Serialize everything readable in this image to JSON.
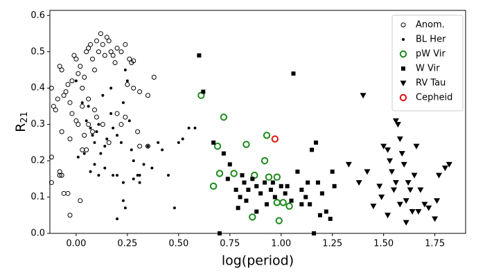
{
  "chart_data": {
    "type": "scatter",
    "x_label": "log(period)",
    "y_label": {
      "base": "R",
      "subscript": "21"
    },
    "xlim": [
      -0.128,
      1.9
    ],
    "ylim": [
      0,
      0.614
    ],
    "xticks": [
      {
        "value": 0,
        "label": "0.00"
      },
      {
        "value": 0.25,
        "label": "0.25"
      },
      {
        "value": 0.5,
        "label": "0.50"
      },
      {
        "value": 0.75,
        "label": "0.75"
      },
      {
        "value": 1,
        "label": "1.00"
      },
      {
        "value": 1.25,
        "label": "1.25"
      },
      {
        "value": 1.5,
        "label": "1.50"
      },
      {
        "value": 1.75,
        "label": "1.75"
      }
    ],
    "yticks": [
      {
        "value": 0,
        "label": "0.0"
      },
      0.1,
      0.2,
      0.3,
      0.4,
      0.5,
      0.6
    ],
    "legend": "upper right",
    "series": [
      {
        "name": "Anom.",
        "color": "#000000",
        "marker": "open-circle",
        "x": [
          -0.12,
          -0.11,
          -0.1,
          -0.09,
          -0.08,
          -0.07,
          -0.06,
          -0.05,
          -0.04,
          -0.03,
          -0.02,
          -0.01,
          0.0,
          0.01,
          0.02,
          0.03,
          0.04,
          0.05,
          0.06,
          0.07,
          0.08,
          0.09,
          0.1,
          0.11,
          0.12,
          0.13,
          0.14,
          0.15,
          0.16,
          0.17,
          0.18,
          0.19,
          0.2,
          0.22,
          0.24,
          0.26,
          0.27,
          0.28,
          0.25,
          0.28,
          0.31,
          0.38,
          0.35,
          -0.12,
          -0.12,
          -0.08,
          -0.08,
          -0.07,
          -0.06,
          -0.04,
          -0.03,
          0.02,
          -0.07,
          -0.03,
          0.0,
          0.03,
          0.05,
          0.04,
          0.08,
          0.1,
          0.13,
          0.16,
          0.2,
          0.22,
          0.24,
          0.3,
          0.31,
          0.35,
          0.03,
          0.06,
          0.09,
          0.06,
          0.01,
          -0.02
        ],
        "values": [
          0.4,
          0.35,
          0.34,
          0.37,
          0.46,
          0.45,
          0.38,
          0.39,
          0.41,
          0.36,
          0.42,
          0.49,
          0.48,
          0.44,
          0.46,
          0.4,
          0.43,
          0.5,
          0.51,
          0.52,
          0.48,
          0.45,
          0.53,
          0.5,
          0.55,
          0.52,
          0.49,
          0.54,
          0.53,
          0.5,
          0.49,
          0.47,
          0.51,
          0.5,
          0.52,
          0.48,
          0.47,
          0.475,
          0.41,
          0.4,
          0.39,
          0.43,
          0.38,
          0.21,
          0.14,
          0.17,
          0.16,
          0.16,
          0.11,
          0.11,
          0.05,
          0.09,
          0.28,
          0.26,
          0.31,
          0.23,
          0.23,
          0.27,
          0.28,
          0.32,
          0.3,
          0.25,
          0.33,
          0.3,
          0.32,
          0.28,
          0.24,
          0.24,
          0.35,
          0.37,
          0.34,
          0.3,
          0.3,
          0.33
        ]
      },
      {
        "name": "BL Her",
        "color": "#000000",
        "marker": "dot",
        "x": [
          0.0,
          0.03,
          0.05,
          0.07,
          0.08,
          0.09,
          0.1,
          0.11,
          0.12,
          0.14,
          0.15,
          0.17,
          0.18,
          0.2,
          0.22,
          0.23,
          0.24,
          0.25,
          0.26,
          0.27,
          0.28,
          0.3,
          0.31,
          0.33,
          0.35,
          0.37,
          0.4,
          0.42,
          0.45,
          0.5,
          0.52,
          0.55,
          0.58,
          0.48,
          0.2,
          0.23,
          0.24,
          0.18,
          0.2,
          0.23,
          0.28,
          0.31,
          0.09,
          0.07,
          0.04,
          0.01,
          0.11,
          0.14,
          0.06,
          0.13,
          0.17
        ],
        "values": [
          0.42,
          0.36,
          0.31,
          0.29,
          0.27,
          0.25,
          0.28,
          0.3,
          0.22,
          0.24,
          0.26,
          0.33,
          0.29,
          0.27,
          0.25,
          0.36,
          0.45,
          0.42,
          0.31,
          0.23,
          0.2,
          0.16,
          0.14,
          0.19,
          0.24,
          0.18,
          0.25,
          0.23,
          0.16,
          0.25,
          0.26,
          0.29,
          0.29,
          0.07,
          0.04,
          0.09,
          0.07,
          0.16,
          0.16,
          0.14,
          0.15,
          0.16,
          0.19,
          0.17,
          0.22,
          0.21,
          0.16,
          0.18,
          0.35,
          0.38,
          0.4
        ]
      },
      {
        "name": "pW Vir",
        "color": "#1a8a1a",
        "marker": "open-circle",
        "x": [
          0.61,
          0.72,
          0.69,
          0.83,
          0.93,
          0.92,
          0.7,
          0.77,
          0.67,
          0.87,
          0.94,
          0.98,
          0.98,
          1.01,
          1.04,
          0.86,
          0.99
        ],
        "values": [
          0.38,
          0.32,
          0.24,
          0.245,
          0.27,
          0.2,
          0.165,
          0.165,
          0.13,
          0.16,
          0.155,
          0.155,
          0.085,
          0.085,
          0.075,
          0.045,
          0.035
        ]
      },
      {
        "name": "W Vir",
        "color": "#000000",
        "marker": "square",
        "x": [
          0.6,
          0.62,
          0.67,
          0.7,
          0.72,
          1.06,
          0.75,
          0.78,
          0.8,
          0.82,
          0.84,
          0.86,
          0.88,
          0.9,
          0.92,
          0.95,
          0.97,
          1.0,
          1.02,
          1.05,
          1.08,
          1.1,
          1.12,
          1.14,
          1.15,
          1.17,
          1.18,
          1.2,
          1.22,
          1.24,
          1.25,
          1.26,
          1.16,
          0.79,
          0.83,
          0.88,
          0.93,
          1.03,
          1.1,
          1.19,
          1.13,
          0.74,
          0.81,
          0.96
        ],
        "values": [
          0.49,
          0.39,
          0.25,
          0.0,
          0.22,
          0.44,
          0.19,
          0.12,
          0.1,
          0.14,
          0.12,
          0.15,
          0.13,
          0.11,
          0.14,
          0.12,
          0.1,
          0.13,
          0.11,
          0.09,
          0.17,
          0.12,
          0.1,
          0.08,
          0.23,
          0.25,
          0.14,
          0.11,
          0.06,
          0.04,
          0.17,
          0.13,
          0.0,
          0.07,
          0.09,
          0.06,
          0.08,
          0.13,
          0.08,
          0.05,
          0.14,
          0.15,
          0.16,
          0.14
        ]
      },
      {
        "name": "RV Tau",
        "color": "#000000",
        "marker": "triangle-down",
        "x": [
          1.4,
          1.33,
          1.38,
          1.42,
          1.45,
          1.48,
          1.5,
          1.52,
          1.53,
          1.54,
          1.55,
          1.56,
          1.57,
          1.58,
          1.59,
          1.6,
          1.61,
          1.62,
          1.63,
          1.64,
          1.65,
          1.66,
          1.68,
          1.7,
          1.72,
          1.75,
          1.77,
          1.8,
          1.82,
          1.76,
          1.58,
          1.52,
          1.49,
          1.56,
          1.61,
          1.67
        ],
        "values": [
          0.38,
          0.19,
          0.14,
          0.17,
          0.075,
          0.13,
          0.24,
          0.23,
          0.2,
          0.17,
          0.12,
          0.31,
          0.3,
          0.26,
          0.22,
          0.19,
          0.09,
          0.14,
          0.12,
          0.06,
          0.16,
          0.24,
          0.12,
          0.08,
          0.07,
          0.04,
          0.16,
          0.18,
          0.19,
          0.09,
          0.08,
          0.05,
          0.1,
          0.14,
          0.03,
          0.06
        ]
      },
      {
        "name": "Cepheid",
        "color": "#dd1111",
        "marker": "open-circle",
        "x": [
          0.97
        ],
        "values": [
          0.26
        ]
      }
    ]
  }
}
